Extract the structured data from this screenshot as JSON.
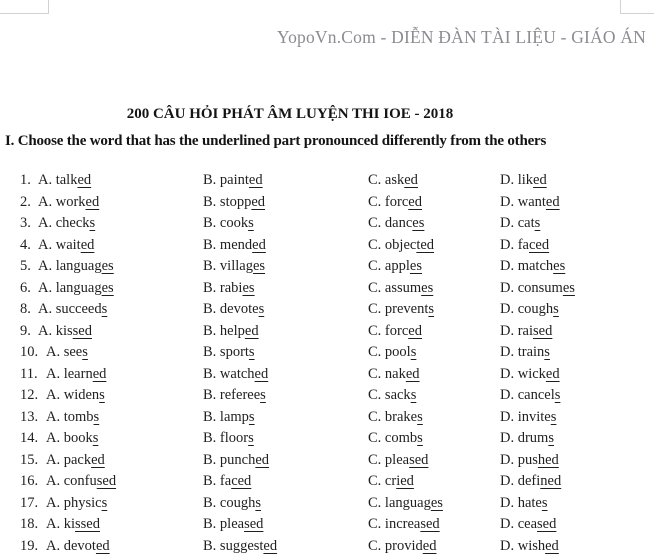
{
  "page": {
    "watermark": "YopoVn.Com - DIỄN ĐÀN TÀI LIỆU - GIÁO ÁN",
    "title": "200 CÂU HỎI PHÁT ÂM LUYỆN THI IOE - 2018",
    "section_heading": "I. Choose the word that has the underlined part pronounced differently from the others"
  },
  "questions": [
    {
      "number": "1",
      "options": [
        {
          "label": "A",
          "base": "talk",
          "underlined": "ed"
        },
        {
          "label": "B",
          "base": "paint",
          "underlined": "ed"
        },
        {
          "label": "C",
          "base": "ask",
          "underlined": "ed"
        },
        {
          "label": "D",
          "base": "lik",
          "underlined": "ed"
        }
      ]
    },
    {
      "number": "2",
      "options": [
        {
          "label": "A",
          "base": "work",
          "underlined": "ed"
        },
        {
          "label": "B",
          "base": "stopp",
          "underlined": "ed"
        },
        {
          "label": "C",
          "base": "forc",
          "underlined": "ed"
        },
        {
          "label": "D",
          "base": "want",
          "underlined": "ed"
        }
      ]
    },
    {
      "number": "3",
      "options": [
        {
          "label": "A",
          "base": "check",
          "underlined": "s"
        },
        {
          "label": "B",
          "base": "cook",
          "underlined": "s"
        },
        {
          "label": "C",
          "base": "danc",
          "underlined": "es"
        },
        {
          "label": "D",
          "base": "cat",
          "underlined": "s"
        }
      ]
    },
    {
      "number": "4",
      "options": [
        {
          "label": "A",
          "base": "wait",
          "underlined": "ed"
        },
        {
          "label": "B",
          "base": "mend",
          "underlined": "ed"
        },
        {
          "label": "C",
          "base": "objec",
          "underlined": "ted"
        },
        {
          "label": "D",
          "base": "fa",
          "underlined": "ced"
        }
      ]
    },
    {
      "number": "5",
      "options": [
        {
          "label": "A",
          "base": "languag",
          "underlined": "es"
        },
        {
          "label": "B",
          "base": "villag",
          "underlined": "es"
        },
        {
          "label": "C",
          "base": "appl",
          "underlined": "es"
        },
        {
          "label": "D",
          "base": "match",
          "underlined": "es"
        }
      ]
    },
    {
      "number": "6",
      "options": [
        {
          "label": "A",
          "base": "languag",
          "underlined": "es"
        },
        {
          "label": "B",
          "base": "rabi",
          "underlined": "es"
        },
        {
          "label": "C",
          "base": "assum",
          "underlined": "es"
        },
        {
          "label": "D",
          "base": "consum",
          "underlined": "es"
        }
      ]
    },
    {
      "number": "8",
      "options": [
        {
          "label": "A",
          "base": "succeed",
          "underlined": "s"
        },
        {
          "label": "B",
          "base": "devote",
          "underlined": "s"
        },
        {
          "label": "C",
          "base": "prevent",
          "underlined": "s"
        },
        {
          "label": "D",
          "base": "cough",
          "underlined": "s"
        }
      ]
    },
    {
      "number": "9",
      "options": [
        {
          "label": "A",
          "base": "kis",
          "underlined": "sed"
        },
        {
          "label": "B",
          "base": "help",
          "underlined": "ed"
        },
        {
          "label": "C",
          "base": "forc",
          "underlined": "ed"
        },
        {
          "label": "D",
          "base": "rai",
          "underlined": "sed"
        }
      ]
    },
    {
      "number": "10",
      "options": [
        {
          "label": "A",
          "base": "see",
          "underlined": "s"
        },
        {
          "label": "B",
          "base": "sport",
          "underlined": "s"
        },
        {
          "label": "C",
          "base": "pool",
          "underlined": "s"
        },
        {
          "label": "D",
          "base": "train",
          "underlined": "s"
        }
      ]
    },
    {
      "number": "11",
      "options": [
        {
          "label": "A",
          "base": "learn",
          "underlined": "ed"
        },
        {
          "label": "B",
          "base": "watch",
          "underlined": "ed"
        },
        {
          "label": "C",
          "base": "nak",
          "underlined": "ed"
        },
        {
          "label": "D",
          "base": "wick",
          "underlined": "ed"
        }
      ]
    },
    {
      "number": "12",
      "options": [
        {
          "label": "A",
          "base": "widen",
          "underlined": "s"
        },
        {
          "label": "B",
          "base": "referee",
          "underlined": "s"
        },
        {
          "label": "C",
          "base": "sack",
          "underlined": "s"
        },
        {
          "label": "D",
          "base": "cancel",
          "underlined": "s"
        }
      ]
    },
    {
      "number": "13",
      "options": [
        {
          "label": "A",
          "base": "tomb",
          "underlined": "s"
        },
        {
          "label": "B",
          "base": "lamp",
          "underlined": "s"
        },
        {
          "label": "C",
          "base": "brake",
          "underlined": "s"
        },
        {
          "label": "D",
          "base": "invite",
          "underlined": "s"
        }
      ]
    },
    {
      "number": "14",
      "options": [
        {
          "label": "A",
          "base": "book",
          "underlined": "s"
        },
        {
          "label": "B",
          "base": "floor",
          "underlined": "s"
        },
        {
          "label": "C",
          "base": "comb",
          "underlined": "s"
        },
        {
          "label": "D",
          "base": "drum",
          "underlined": "s"
        }
      ]
    },
    {
      "number": "15",
      "options": [
        {
          "label": "A",
          "base": "pack",
          "underlined": "ed"
        },
        {
          "label": "B",
          "base": "punch",
          "underlined": "ed"
        },
        {
          "label": "C",
          "base": "plea",
          "underlined": "sed"
        },
        {
          "label": "D",
          "base": "pus",
          "underlined": "hed"
        }
      ]
    },
    {
      "number": "16",
      "options": [
        {
          "label": "A",
          "base": "confu",
          "underlined": "sed"
        },
        {
          "label": "B",
          "base": "fa",
          "underlined": "ced"
        },
        {
          "label": "C",
          "base": "cr",
          "underlined": "ied"
        },
        {
          "label": "D",
          "base": "defi",
          "underlined": "ned"
        }
      ]
    },
    {
      "number": "17",
      "options": [
        {
          "label": "A",
          "base": "physic",
          "underlined": "s"
        },
        {
          "label": "B",
          "base": "cough",
          "underlined": "s"
        },
        {
          "label": "C",
          "base": "languag",
          "underlined": "es"
        },
        {
          "label": "D",
          "base": "hate",
          "underlined": "s"
        }
      ]
    },
    {
      "number": "18",
      "options": [
        {
          "label": "A",
          "base": "ki",
          "underlined": "ssed"
        },
        {
          "label": "B",
          "base": "plea",
          "underlined": "sed"
        },
        {
          "label": "C",
          "base": "increa",
          "underlined": "sed"
        },
        {
          "label": "D",
          "base": "cea",
          "underlined": "sed"
        }
      ]
    },
    {
      "number": "19",
      "options": [
        {
          "label": "A",
          "base": "devot",
          "underlined": "ed"
        },
        {
          "label": "B",
          "base": "suggest",
          "underlined": "ed"
        },
        {
          "label": "C",
          "base": "provid",
          "underlined": "ed"
        },
        {
          "label": "D",
          "base": "wish",
          "underlined": "ed"
        }
      ]
    }
  ]
}
